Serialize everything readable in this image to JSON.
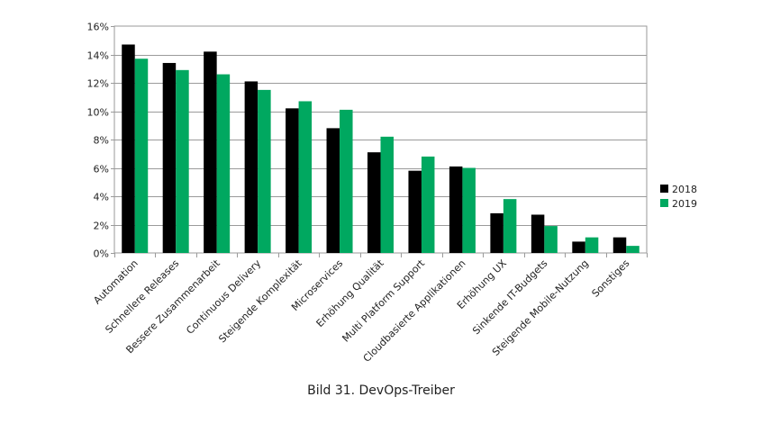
{
  "caption": "Bild 31. DevOps-Treiber",
  "chart_data": {
    "type": "bar",
    "categories": [
      "Automation",
      "Schnellere Releases",
      "Bessere Zusammenarbeit",
      "Continuous Delivery",
      "Steigende Komplexität",
      "Microservices",
      "Erhöhung Qualität",
      "Multi Platform Support",
      "Cloudbasierte Applikationen",
      "Erhöhung UX",
      "Sinkende IT-Budgets",
      "Steigende Mobile-Nutzung",
      "Sonstiges"
    ],
    "series": [
      {
        "name": "2018",
        "color": "#000000",
        "values": [
          14.7,
          13.4,
          14.2,
          12.1,
          10.2,
          8.8,
          7.1,
          5.8,
          6.1,
          2.8,
          2.7,
          0.8,
          1.1
        ]
      },
      {
        "name": "2019",
        "color": "#00a860",
        "values": [
          13.7,
          12.9,
          12.6,
          11.5,
          10.7,
          10.1,
          8.2,
          6.8,
          6.0,
          3.8,
          1.9,
          1.1,
          0.5
        ]
      }
    ],
    "ylim": [
      0,
      16
    ],
    "yticks": [
      "0%",
      "2%",
      "4%",
      "6%",
      "8%",
      "10%",
      "12%",
      "14%",
      "16%"
    ],
    "grid": true,
    "legend": "right",
    "xlabel": "",
    "ylabel": ""
  }
}
